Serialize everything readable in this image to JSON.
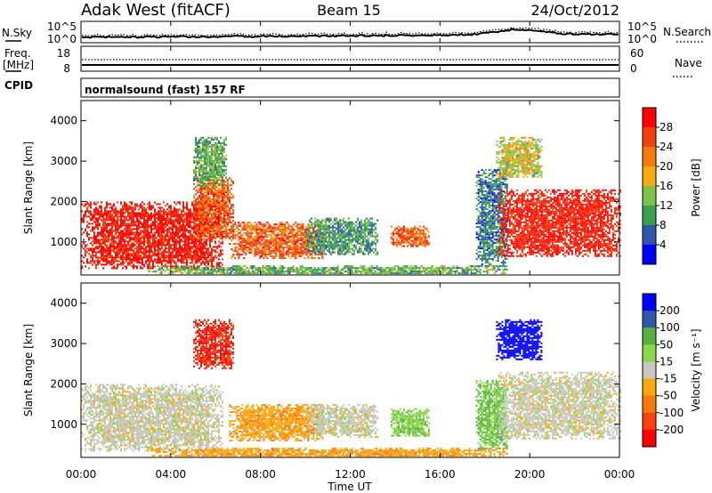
{
  "header": {
    "station": "Adak West (fitACF)",
    "beam": "Beam 15",
    "date": "24/Oct/2012"
  },
  "top_panels": {
    "nsky_label": "N.Sky",
    "nsky_ticks": [
      "10^5",
      "10^0"
    ],
    "nsearch_label": "N.Search",
    "nsearch_ticks": [
      "10^5",
      "10^0"
    ],
    "freq_label": "Freq.",
    "freq_unit": "[MHz]",
    "freq_ticks": [
      "18",
      "8"
    ],
    "nave_label": "Nave",
    "nave_ticks": [
      "60",
      "0"
    ],
    "cpid_label": "CPID",
    "cpid_value": "normalsound (fast) 157 RF"
  },
  "colors": {
    "power": [
      "#0000ff",
      "#2f56a8",
      "#3aa050",
      "#7cc24a",
      "#f8a810",
      "#f87810",
      "#f04010",
      "#ff0000"
    ],
    "velocity": [
      "#ff0000",
      "#f84010",
      "#f87810",
      "#f8a810",
      "#c8c8c0",
      "#c8c8c0",
      "#8ad84a",
      "#58b040",
      "#2f56a8",
      "#0000ff"
    ],
    "grey": "#c8c8c0"
  },
  "chart_data": [
    {
      "type": "heatmap",
      "title": "",
      "xlabel": "Time UT",
      "ylabel": "Slant Range [km]",
      "x_ticks": [
        "00:00",
        "04:00",
        "08:00",
        "12:00",
        "16:00",
        "20:00",
        "00:00"
      ],
      "x_range_hours": [
        0,
        24
      ],
      "y_ticks": [
        "1000",
        "2000",
        "3000",
        "4000"
      ],
      "ylim": [
        180,
        4500
      ],
      "colorbar": {
        "label": "Power [dB]",
        "ticks": [
          "4",
          "8",
          "12",
          "16",
          "20",
          "24",
          "28"
        ],
        "range": [
          0,
          32
        ]
      },
      "regions": [
        {
          "t": [
            0.0,
            6.3
          ],
          "r": [
            350,
            2000
          ],
          "value": 29
        },
        {
          "t": [
            5.0,
            6.8
          ],
          "r": [
            1100,
            2600
          ],
          "value": 24
        },
        {
          "t": [
            5.0,
            6.5
          ],
          "r": [
            2400,
            3600
          ],
          "value": 12
        },
        {
          "t": [
            6.6,
            10.8
          ],
          "r": [
            600,
            1500
          ],
          "value": 24
        },
        {
          "t": [
            10.0,
            13.2
          ],
          "r": [
            700,
            1600
          ],
          "value": 10
        },
        {
          "t": [
            13.8,
            15.5
          ],
          "r": [
            900,
            1400
          ],
          "value": 24
        },
        {
          "t": [
            17.6,
            19.0
          ],
          "r": [
            400,
            2800
          ],
          "value": 8
        },
        {
          "t": [
            18.6,
            24.0
          ],
          "r": [
            650,
            2300
          ],
          "value": 29
        },
        {
          "t": [
            18.5,
            20.5
          ],
          "r": [
            2600,
            3600
          ],
          "value": 16
        },
        {
          "t": [
            3.0,
            19.0
          ],
          "r": [
            200,
            420
          ],
          "value": 12
        }
      ]
    },
    {
      "type": "heatmap",
      "title": "",
      "xlabel": "Time UT",
      "ylabel": "Slant Range [km]",
      "x_ticks": [
        "00:00",
        "04:00",
        "08:00",
        "12:00",
        "16:00",
        "20:00",
        "00:00"
      ],
      "x_range_hours": [
        0,
        24
      ],
      "y_ticks": [
        "1000",
        "2000",
        "3000",
        "4000"
      ],
      "ylim": [
        180,
        4500
      ],
      "colorbar": {
        "label": "Velocity [m s⁻¹]",
        "ticks": [
          "-200",
          "-100",
          "-50",
          "-15",
          "15",
          "50",
          "100",
          "200"
        ],
        "range": [
          -250,
          250
        ]
      },
      "regions": [
        {
          "t": [
            0.0,
            6.3
          ],
          "r": [
            350,
            2000
          ],
          "value": 0
        },
        {
          "t": [
            5.0,
            6.8
          ],
          "r": [
            2400,
            3600
          ],
          "value": -200
        },
        {
          "t": [
            6.6,
            10.8
          ],
          "r": [
            600,
            1500
          ],
          "value": -40
        },
        {
          "t": [
            10.0,
            13.2
          ],
          "r": [
            700,
            1500
          ],
          "value": 0
        },
        {
          "t": [
            13.8,
            15.5
          ],
          "r": [
            700,
            1400
          ],
          "value": 40
        },
        {
          "t": [
            17.6,
            19.0
          ],
          "r": [
            400,
            2100
          ],
          "value": 50
        },
        {
          "t": [
            18.6,
            24.0
          ],
          "r": [
            650,
            2300
          ],
          "value": 0
        },
        {
          "t": [
            18.5,
            20.5
          ],
          "r": [
            2600,
            3600
          ],
          "value": 220
        },
        {
          "t": [
            3.0,
            19.0
          ],
          "r": [
            200,
            420
          ],
          "value": -40
        }
      ]
    }
  ]
}
